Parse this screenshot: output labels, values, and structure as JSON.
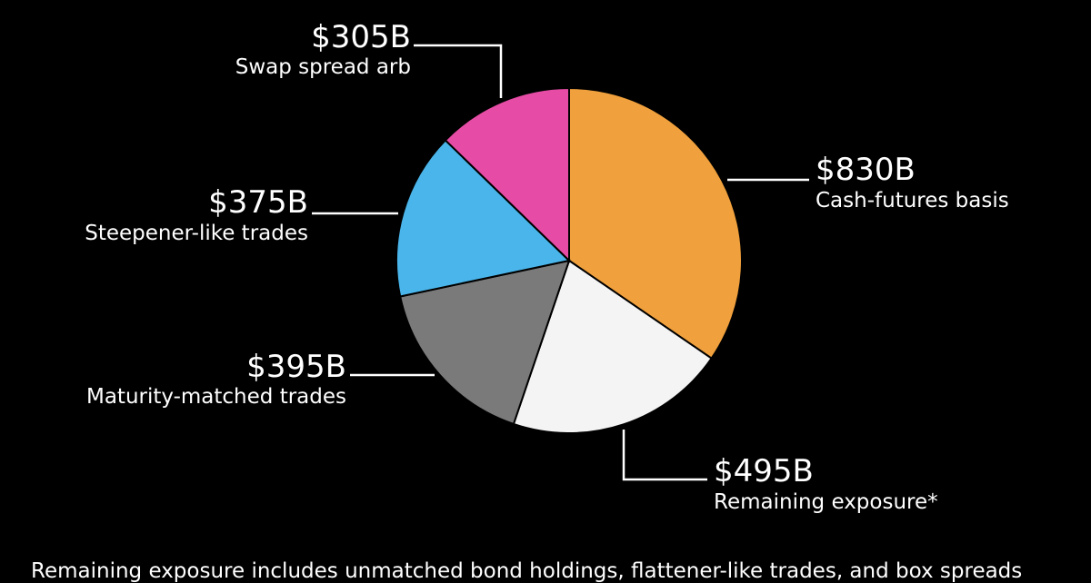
{
  "chart_data": {
    "type": "pie",
    "title": "",
    "slices": [
      {
        "value_label": "$830B",
        "label": "Cash-futures basis",
        "value": 830,
        "color": "#F0A03C"
      },
      {
        "value_label": "$495B",
        "label": "Remaining exposure*",
        "value": 495,
        "color": "#F4F4F4"
      },
      {
        "value_label": "$395B",
        "label": "Maturity-matched trades",
        "value": 395,
        "color": "#7A7A7A"
      },
      {
        "value_label": "$375B",
        "label": "Steepener-like trades",
        "value": 375,
        "color": "#4AB5EA"
      },
      {
        "value_label": "$305B",
        "label": "Swap spread arb",
        "value": 305,
        "color": "#E64CA5"
      }
    ]
  },
  "footnote": "Remaining exposure includes unmatched bond holdings, flattener-like trades, and box spreads"
}
